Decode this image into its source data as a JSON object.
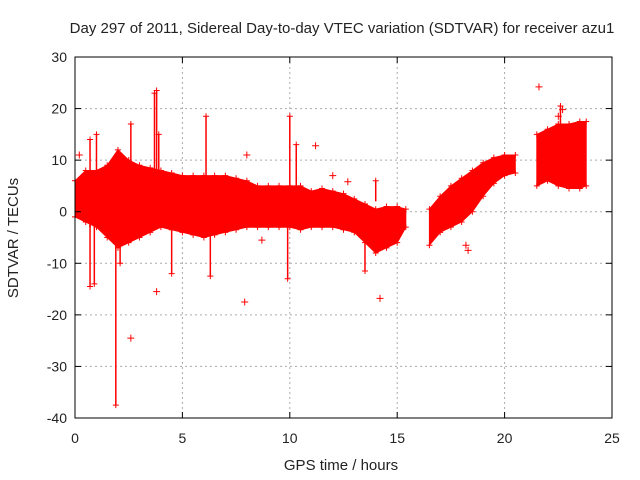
{
  "chart_data": {
    "type": "scatter",
    "title": "Day 297 of 2011, Sidereal Day-to-day VTEC variation (SDTVAR) for receiver azu1",
    "xlabel": "GPS time / hours",
    "ylabel": "SDTVAR / TECUs",
    "xlim": [
      0,
      25
    ],
    "ylim": [
      -40,
      30
    ],
    "xticks": [
      0,
      5,
      10,
      15,
      20,
      25
    ],
    "yticks": [
      -40,
      -30,
      -20,
      -10,
      0,
      10,
      20,
      30
    ],
    "grid": true,
    "series": [
      {
        "name": "SDTVAR",
        "color": "#ff0000",
        "marker": "plus",
        "band": {
          "x": [
            0.0,
            0.5,
            1.0,
            1.5,
            2.0,
            2.5,
            3.0,
            3.5,
            4.0,
            4.5,
            5.0,
            5.5,
            6.0,
            6.5,
            7.0,
            7.5,
            8.0,
            8.5,
            9.0,
            9.5,
            10.0,
            10.5,
            11.0,
            11.5,
            12.0,
            12.5,
            13.0,
            13.5,
            14.0,
            14.5,
            15.0,
            15.4
          ],
          "high": [
            6.0,
            8.0,
            8.0,
            9.0,
            12.0,
            10.0,
            9.0,
            8.5,
            8.0,
            7.5,
            7.0,
            7.0,
            7.0,
            7.0,
            7.0,
            6.5,
            6.0,
            5.0,
            5.0,
            5.0,
            5.0,
            5.0,
            4.0,
            4.5,
            4.0,
            3.5,
            2.5,
            1.5,
            0.5,
            1.0,
            1.0,
            0.5
          ],
          "low": [
            -1.0,
            -2.0,
            -3.0,
            -5.0,
            -7.0,
            -6.0,
            -5.0,
            -4.0,
            -3.0,
            -3.5,
            -4.0,
            -4.5,
            -5.0,
            -4.5,
            -4.0,
            -3.5,
            -3.0,
            -3.0,
            -3.0,
            -3.0,
            -3.0,
            -3.5,
            -3.0,
            -3.0,
            -3.0,
            -3.5,
            -4.0,
            -6.0,
            -8.0,
            -7.0,
            -6.0,
            -3.0
          ]
        },
        "band2": {
          "x": [
            16.5,
            17.0,
            17.5,
            18.0,
            18.5,
            19.0,
            19.5,
            20.0,
            20.5
          ],
          "high": [
            0.5,
            3.0,
            5.0,
            6.5,
            8.0,
            9.5,
            10.5,
            11.0,
            11.0
          ],
          "low": [
            -6.5,
            -4.0,
            -3.0,
            -2.0,
            0.0,
            3.0,
            5.5,
            7.0,
            7.5
          ]
        },
        "band3": {
          "x": [
            21.5,
            22.0,
            22.5,
            23.0,
            23.5,
            23.8
          ],
          "high": [
            15.0,
            16.0,
            17.0,
            17.0,
            17.5,
            17.5
          ],
          "low": [
            5.0,
            6.0,
            5.0,
            4.5,
            4.5,
            5.0
          ]
        },
        "spikes": [
          {
            "x": 0.7,
            "y0": -3,
            "y1": 14
          },
          {
            "x": 0.7,
            "y0": -2,
            "y1": -14.5
          },
          {
            "x": 0.9,
            "y0": -2,
            "y1": -14
          },
          {
            "x": 1.0,
            "y0": 5,
            "y1": 15
          },
          {
            "x": 1.9,
            "y0": 0,
            "y1": -37.5
          },
          {
            "x": 2.1,
            "y0": -3,
            "y1": -10
          },
          {
            "x": 2.6,
            "y0": 5,
            "y1": 17
          },
          {
            "x": 3.7,
            "y0": 5,
            "y1": 23
          },
          {
            "x": 3.8,
            "y0": 3,
            "y1": 23.5
          },
          {
            "x": 3.9,
            "y0": 3,
            "y1": 15
          },
          {
            "x": 4.5,
            "y0": -3,
            "y1": -12
          },
          {
            "x": 6.1,
            "y0": 5,
            "y1": 18.5
          },
          {
            "x": 6.3,
            "y0": -3,
            "y1": -12.5
          },
          {
            "x": 10.0,
            "y0": 5,
            "y1": 18.5
          },
          {
            "x": 9.9,
            "y0": -3,
            "y1": -13
          },
          {
            "x": 10.3,
            "y0": 5,
            "y1": 13
          },
          {
            "x": 13.5,
            "y0": -4,
            "y1": -11.5
          },
          {
            "x": 14.0,
            "y0": 2,
            "y1": 6
          },
          {
            "x": 22.6,
            "y0": 15,
            "y1": 20.5
          }
        ],
        "outliers": [
          [
            0.2,
            11.0
          ],
          [
            2.6,
            -24.5
          ],
          [
            3.8,
            -15.5
          ],
          [
            7.9,
            -17.5
          ],
          [
            8.0,
            11.0
          ],
          [
            11.2,
            12.8
          ],
          [
            12.7,
            5.8
          ],
          [
            14.2,
            -16.8
          ],
          [
            18.3,
            -7.5
          ],
          [
            18.2,
            -6.5
          ],
          [
            21.6,
            24.2
          ],
          [
            22.7,
            19.8
          ],
          [
            22.5,
            18.5
          ],
          [
            8.7,
            -5.5
          ],
          [
            12.0,
            7.0
          ]
        ]
      }
    ]
  }
}
